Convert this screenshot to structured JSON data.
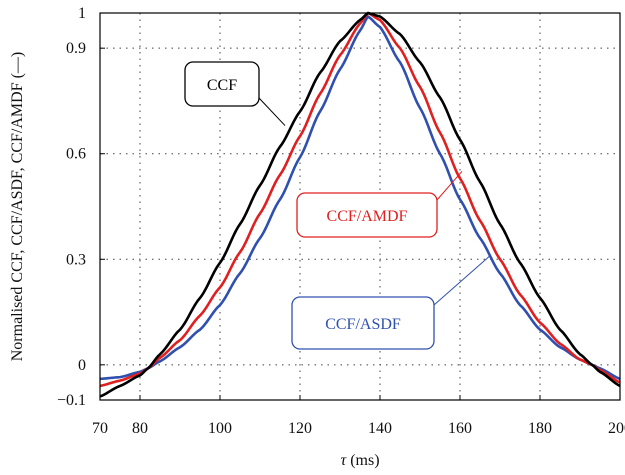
{
  "chart_data": {
    "type": "line",
    "title": "",
    "xlabel_symbol": "τ",
    "xlabel_unit": " (ms)",
    "ylabel": "Normalised CCF, CCF/ASDF, CCF/AMDF (—)",
    "xlim": [
      70,
      200
    ],
    "ylim": [
      -0.1,
      1.0
    ],
    "x_ticks": [
      70,
      80,
      100,
      120,
      140,
      160,
      180,
      200
    ],
    "x_tick_labels": [
      "70",
      "80",
      "100",
      "120",
      "140",
      "160",
      "180",
      "200"
    ],
    "y_ticks": [
      -0.1,
      0,
      0.3,
      0.6,
      0.9,
      1
    ],
    "y_tick_labels": [
      "−0.1",
      "0",
      "0.3",
      "0.6",
      "0.9",
      "1"
    ],
    "grid": "dotted",
    "series": [
      {
        "name": "CCF",
        "color": "#000000",
        "x": [
          70,
          75,
          80,
          82,
          85,
          90,
          95,
          100,
          105,
          110,
          115,
          120,
          125,
          130,
          135,
          137,
          140,
          145,
          150,
          155,
          160,
          165,
          170,
          175,
          180,
          185,
          190,
          193,
          195,
          200
        ],
        "y": [
          -0.09,
          -0.06,
          -0.03,
          -0.01,
          0.03,
          0.1,
          0.19,
          0.29,
          0.4,
          0.51,
          0.62,
          0.72,
          0.83,
          0.92,
          0.98,
          1.0,
          0.99,
          0.94,
          0.86,
          0.76,
          0.64,
          0.52,
          0.4,
          0.29,
          0.19,
          0.1,
          0.03,
          0.0,
          -0.02,
          -0.06
        ]
      },
      {
        "name": "CCF/AMDF",
        "color": "#e02020",
        "x": [
          70,
          75,
          80,
          82,
          85,
          90,
          95,
          100,
          105,
          110,
          115,
          120,
          125,
          130,
          135,
          137,
          140,
          145,
          150,
          155,
          160,
          165,
          170,
          175,
          180,
          185,
          190,
          193,
          195,
          200
        ],
        "y": [
          -0.06,
          -0.045,
          -0.025,
          -0.01,
          0.02,
          0.07,
          0.14,
          0.22,
          0.32,
          0.43,
          0.54,
          0.65,
          0.77,
          0.88,
          0.97,
          1.0,
          0.98,
          0.9,
          0.79,
          0.66,
          0.53,
          0.41,
          0.3,
          0.2,
          0.12,
          0.06,
          0.015,
          0.0,
          -0.015,
          -0.05
        ]
      },
      {
        "name": "CCF/ASDF",
        "color": "#3050b0",
        "x": [
          70,
          75,
          80,
          82,
          85,
          90,
          95,
          100,
          105,
          110,
          115,
          120,
          125,
          130,
          135,
          137,
          140,
          145,
          150,
          155,
          160,
          165,
          170,
          175,
          180,
          185,
          190,
          193,
          195,
          200
        ],
        "y": [
          -0.04,
          -0.035,
          -0.02,
          -0.01,
          0.01,
          0.05,
          0.1,
          0.17,
          0.26,
          0.36,
          0.47,
          0.59,
          0.72,
          0.84,
          0.95,
          0.99,
          0.96,
          0.86,
          0.73,
          0.6,
          0.47,
          0.36,
          0.26,
          0.17,
          0.1,
          0.05,
          0.015,
          0.0,
          -0.01,
          -0.04
        ]
      }
    ],
    "annotations": [
      {
        "text": "CCF",
        "series": "CCF",
        "border_color": "#000000",
        "text_color": "#000000"
      },
      {
        "text": "CCF/AMDF",
        "series": "CCF/AMDF",
        "border_color": "#e02020",
        "text_color": "#e02020"
      },
      {
        "text": "CCF/ASDF",
        "series": "CCF/ASDF",
        "border_color": "#3050b0",
        "text_color": "#3050b0"
      }
    ]
  }
}
